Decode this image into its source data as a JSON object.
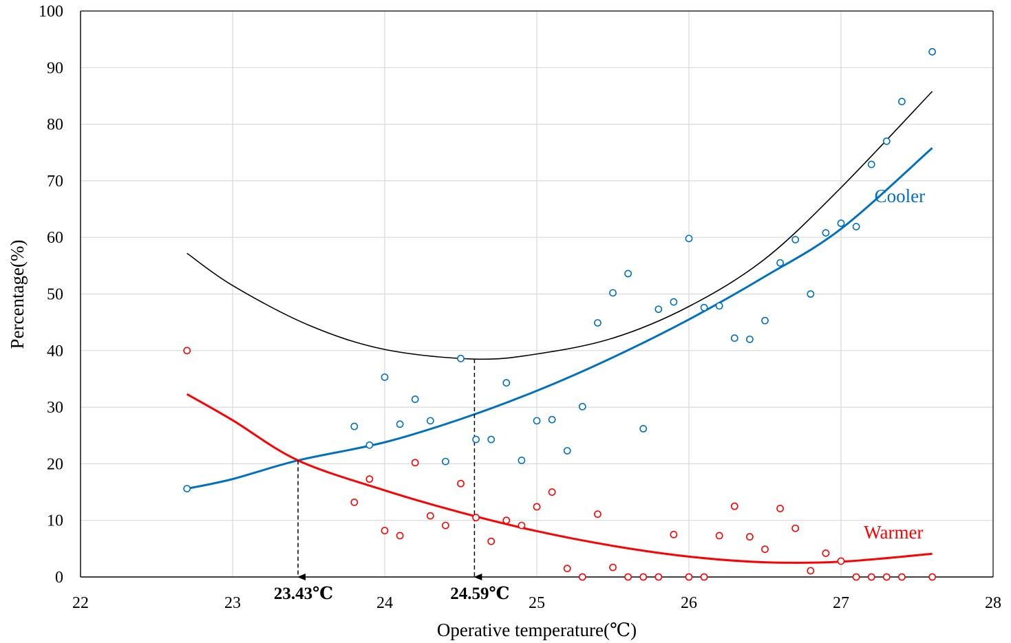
{
  "chart_data": {
    "type": "scatter",
    "xlabel": "Operative temperature(℃)",
    "ylabel": "Percentage(%)",
    "xlim": [
      22,
      28
    ],
    "ylim": [
      0,
      100
    ],
    "x_ticks": [
      "22",
      "23",
      "24",
      "25",
      "26",
      "27",
      "28"
    ],
    "y_ticks": [
      "0",
      "10",
      "20",
      "30",
      "40",
      "50",
      "60",
      "70",
      "80",
      "90",
      "100"
    ],
    "grid": true,
    "legend": "none",
    "series": [
      {
        "name": "Cooler",
        "color": "#0070C0",
        "points": [
          [
            22.7,
            15.6
          ],
          [
            23.8,
            26.6
          ],
          [
            23.9,
            23.3
          ],
          [
            24.0,
            35.3
          ],
          [
            24.1,
            27.0
          ],
          [
            24.2,
            31.4
          ],
          [
            24.3,
            27.6
          ],
          [
            24.4,
            20.4
          ],
          [
            24.5,
            38.6
          ],
          [
            24.6,
            24.3
          ],
          [
            24.7,
            24.3
          ],
          [
            24.8,
            34.3
          ],
          [
            24.9,
            20.6
          ],
          [
            25.0,
            27.6
          ],
          [
            25.1,
            27.8
          ],
          [
            25.2,
            22.3
          ],
          [
            25.3,
            30.1
          ],
          [
            25.4,
            44.9
          ],
          [
            25.5,
            50.2
          ],
          [
            25.6,
            53.6
          ],
          [
            25.7,
            26.2
          ],
          [
            25.8,
            47.3
          ],
          [
            25.9,
            48.6
          ],
          [
            26.0,
            59.8
          ],
          [
            26.1,
            47.6
          ],
          [
            26.2,
            47.9
          ],
          [
            26.3,
            42.2
          ],
          [
            26.4,
            42.0
          ],
          [
            26.5,
            45.3
          ],
          [
            26.6,
            55.5
          ],
          [
            26.7,
            59.6
          ],
          [
            26.8,
            50.0
          ],
          [
            26.9,
            60.8
          ],
          [
            27.0,
            62.5
          ],
          [
            27.1,
            61.9
          ],
          [
            27.2,
            72.9
          ],
          [
            27.3,
            77.0
          ],
          [
            27.4,
            84.0
          ],
          [
            27.6,
            92.8
          ]
        ],
        "fit_curve": [
          [
            22.7,
            15.6
          ],
          [
            23.0,
            17.3
          ],
          [
            23.43,
            20.6
          ],
          [
            24.0,
            23.8
          ],
          [
            24.5,
            27.9
          ],
          [
            25.0,
            32.9
          ],
          [
            25.5,
            38.8
          ],
          [
            26.0,
            45.5
          ],
          [
            26.5,
            53.1
          ],
          [
            27.0,
            61.5
          ],
          [
            27.6,
            75.8
          ]
        ]
      },
      {
        "name": "Warmer",
        "color": "#FF0000",
        "points": [
          [
            22.7,
            40.0
          ],
          [
            23.8,
            13.2
          ],
          [
            23.9,
            17.3
          ],
          [
            24.0,
            8.2
          ],
          [
            24.1,
            7.3
          ],
          [
            24.2,
            20.2
          ],
          [
            24.3,
            10.8
          ],
          [
            24.4,
            9.1
          ],
          [
            24.5,
            16.5
          ],
          [
            24.6,
            10.5
          ],
          [
            24.7,
            6.3
          ],
          [
            24.8,
            10.0
          ],
          [
            24.9,
            9.1
          ],
          [
            25.0,
            12.4
          ],
          [
            25.1,
            15.0
          ],
          [
            25.2,
            1.5
          ],
          [
            25.3,
            0.0
          ],
          [
            25.4,
            11.1
          ],
          [
            25.5,
            1.7
          ],
          [
            25.6,
            0.0
          ],
          [
            25.7,
            0.0
          ],
          [
            25.8,
            0.0
          ],
          [
            25.9,
            7.5
          ],
          [
            26.0,
            0.0
          ],
          [
            26.1,
            0.0
          ],
          [
            26.2,
            7.3
          ],
          [
            26.3,
            12.5
          ],
          [
            26.4,
            7.1
          ],
          [
            26.5,
            4.9
          ],
          [
            26.6,
            12.1
          ],
          [
            26.7,
            8.6
          ],
          [
            26.8,
            1.1
          ],
          [
            26.9,
            4.2
          ],
          [
            27.0,
            2.8
          ],
          [
            27.1,
            0.0
          ],
          [
            27.2,
            0.0
          ],
          [
            27.3,
            0.0
          ],
          [
            27.4,
            0.0
          ],
          [
            27.6,
            0.0
          ]
        ],
        "fit_curve": [
          [
            22.7,
            32.3
          ],
          [
            23.0,
            27.7
          ],
          [
            23.43,
            20.6
          ],
          [
            24.0,
            15.3
          ],
          [
            24.5,
            11.4
          ],
          [
            25.0,
            8.1
          ],
          [
            25.5,
            5.5
          ],
          [
            26.0,
            3.6
          ],
          [
            26.5,
            2.6
          ],
          [
            27.0,
            2.7
          ],
          [
            27.6,
            4.1
          ]
        ]
      },
      {
        "name": "",
        "color": "#000000",
        "fit_curve": [
          [
            22.7,
            57.2
          ],
          [
            23.0,
            51.5
          ],
          [
            23.5,
            44.5
          ],
          [
            24.0,
            40.2
          ],
          [
            24.59,
            38.5
          ],
          [
            25.0,
            39.4
          ],
          [
            25.5,
            42.2
          ],
          [
            26.0,
            47.8
          ],
          [
            26.5,
            56.2
          ],
          [
            27.0,
            68.8
          ],
          [
            27.6,
            85.8
          ]
        ]
      }
    ],
    "series_labels": [
      {
        "text": "Cooler",
        "color": "#0070C0",
        "at": [
          27.22,
          66.2
        ]
      },
      {
        "text": "Warmer",
        "color": "#FF0000",
        "at": [
          27.15,
          6.8
        ]
      }
    ],
    "annotations": [
      {
        "label": "23.43℃",
        "x": 23.43,
        "from_y": 20.6
      },
      {
        "label": "24.59℃",
        "x": 24.59,
        "from_y": 38.5
      }
    ]
  }
}
